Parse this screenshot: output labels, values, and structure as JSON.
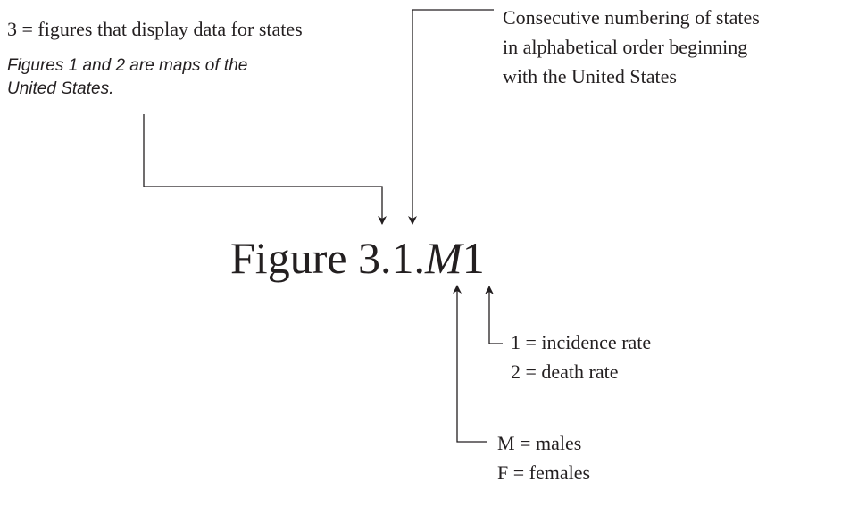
{
  "top_left": {
    "text": "3 = figures that display data for states",
    "note_lines": [
      "Figures 1 and 2 are maps of the",
      "United States."
    ]
  },
  "top_right": {
    "lines": [
      "Consecutive numbering of states",
      "in alphabetical order beginning",
      "with the United States"
    ]
  },
  "figure_label": {
    "prefix": "Figure 3.1.",
    "sex": "M",
    "rate": "1"
  },
  "rate_codes": [
    "1 = incidence rate",
    "2 = death rate"
  ],
  "sex_codes": [
    "M = males",
    "F = females"
  ]
}
